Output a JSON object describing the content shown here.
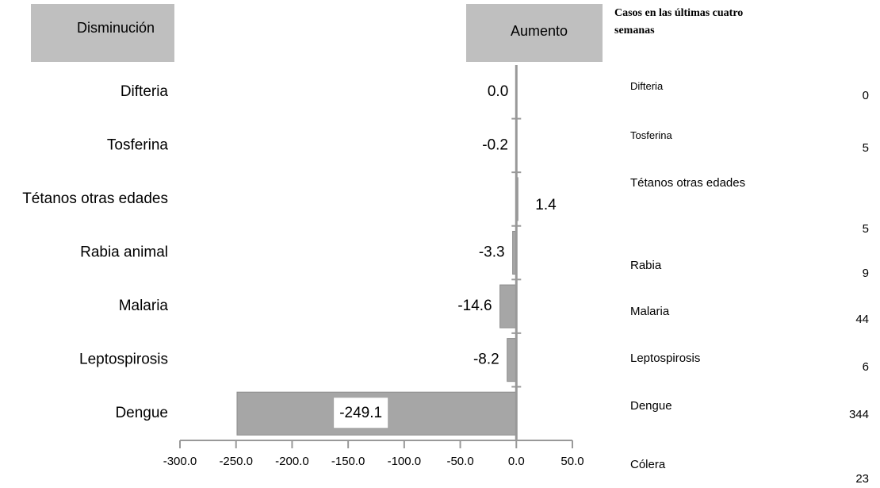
{
  "chart_data": {
    "type": "bar",
    "orientation": "horizontal",
    "left_header": "Disminución",
    "right_header": "Aumento",
    "categories": [
      "Difteria",
      "Tosferina",
      "Tétanos otras edades",
      "Rabia animal",
      "Malaria",
      "Leptospirosis",
      "Dengue"
    ],
    "values": [
      0.0,
      -0.2,
      1.4,
      -3.3,
      -14.6,
      -8.2,
      -249.1
    ],
    "value_labels": [
      "0.0",
      "-0.2",
      "1.4",
      "-3.3",
      "-14.6",
      "-8.2",
      "-249.1"
    ],
    "color": "#a6a6a6",
    "xlim": [
      -300,
      50
    ],
    "xticks": [
      {
        "value": -300,
        "label": "-300.0"
      },
      {
        "value": -250,
        "label": "-250.0"
      },
      {
        "value": -200,
        "label": "-200.0"
      },
      {
        "value": -150,
        "label": "-150.0"
      },
      {
        "value": -100,
        "label": "-100.0"
      },
      {
        "value": -50,
        "label": "-50.0"
      },
      {
        "value": 0,
        "label": "0.0"
      },
      {
        "value": 50,
        "label": "50.0"
      }
    ]
  },
  "table": {
    "header": "Casos en las últimas cuatro semanas",
    "rows": [
      [
        "Difteria",
        0
      ],
      [
        "Tosferina",
        5
      ],
      [
        "Tétanos otras edades",
        5
      ],
      [
        "Rabia",
        9
      ],
      [
        "Malaria",
        44
      ],
      [
        "Leptospirosis",
        6
      ],
      [
        "Dengue",
        344
      ],
      [
        "Cólera",
        23
      ]
    ]
  }
}
